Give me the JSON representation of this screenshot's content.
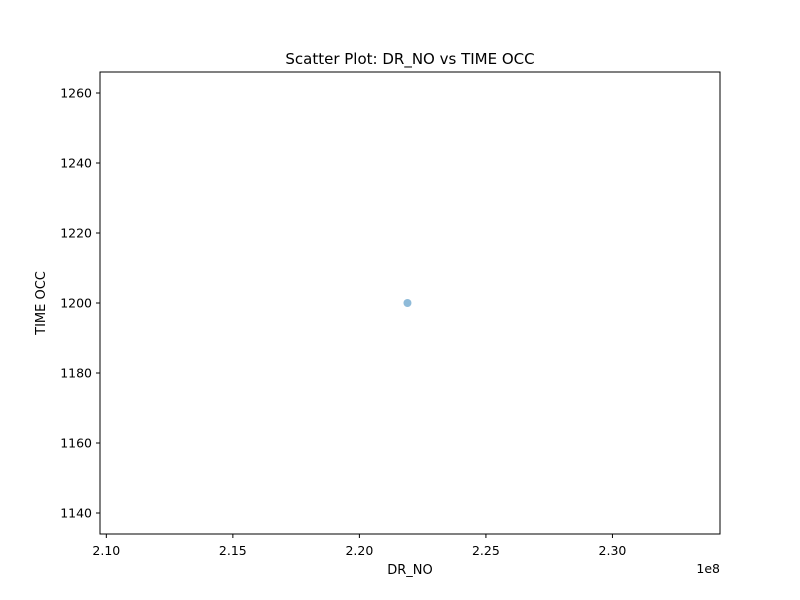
{
  "chart_data": {
    "type": "scatter",
    "title": "Scatter Plot: DR_NO vs TIME OCC",
    "xlabel": "DR_NO",
    "ylabel": "TIME OCC",
    "x_offset_label": "1e8",
    "xlim": [
      2.0975,
      2.3425
    ],
    "ylim": [
      1134,
      1266
    ],
    "x_ticks": [
      2.1,
      2.15,
      2.2,
      2.25,
      2.3
    ],
    "x_tick_labels": [
      "2.10",
      "2.15",
      "2.20",
      "2.25",
      "2.30"
    ],
    "y_ticks": [
      1140,
      1160,
      1180,
      1200,
      1220,
      1240,
      1260
    ],
    "y_tick_labels": [
      "1140",
      "1160",
      "1180",
      "1200",
      "1220",
      "1240",
      "1260"
    ],
    "grid": false,
    "legend": "none",
    "points": [
      {
        "x": 2.219,
        "y": 1200
      }
    ],
    "point_color": "#1f77b4",
    "point_opacity": 0.5
  }
}
